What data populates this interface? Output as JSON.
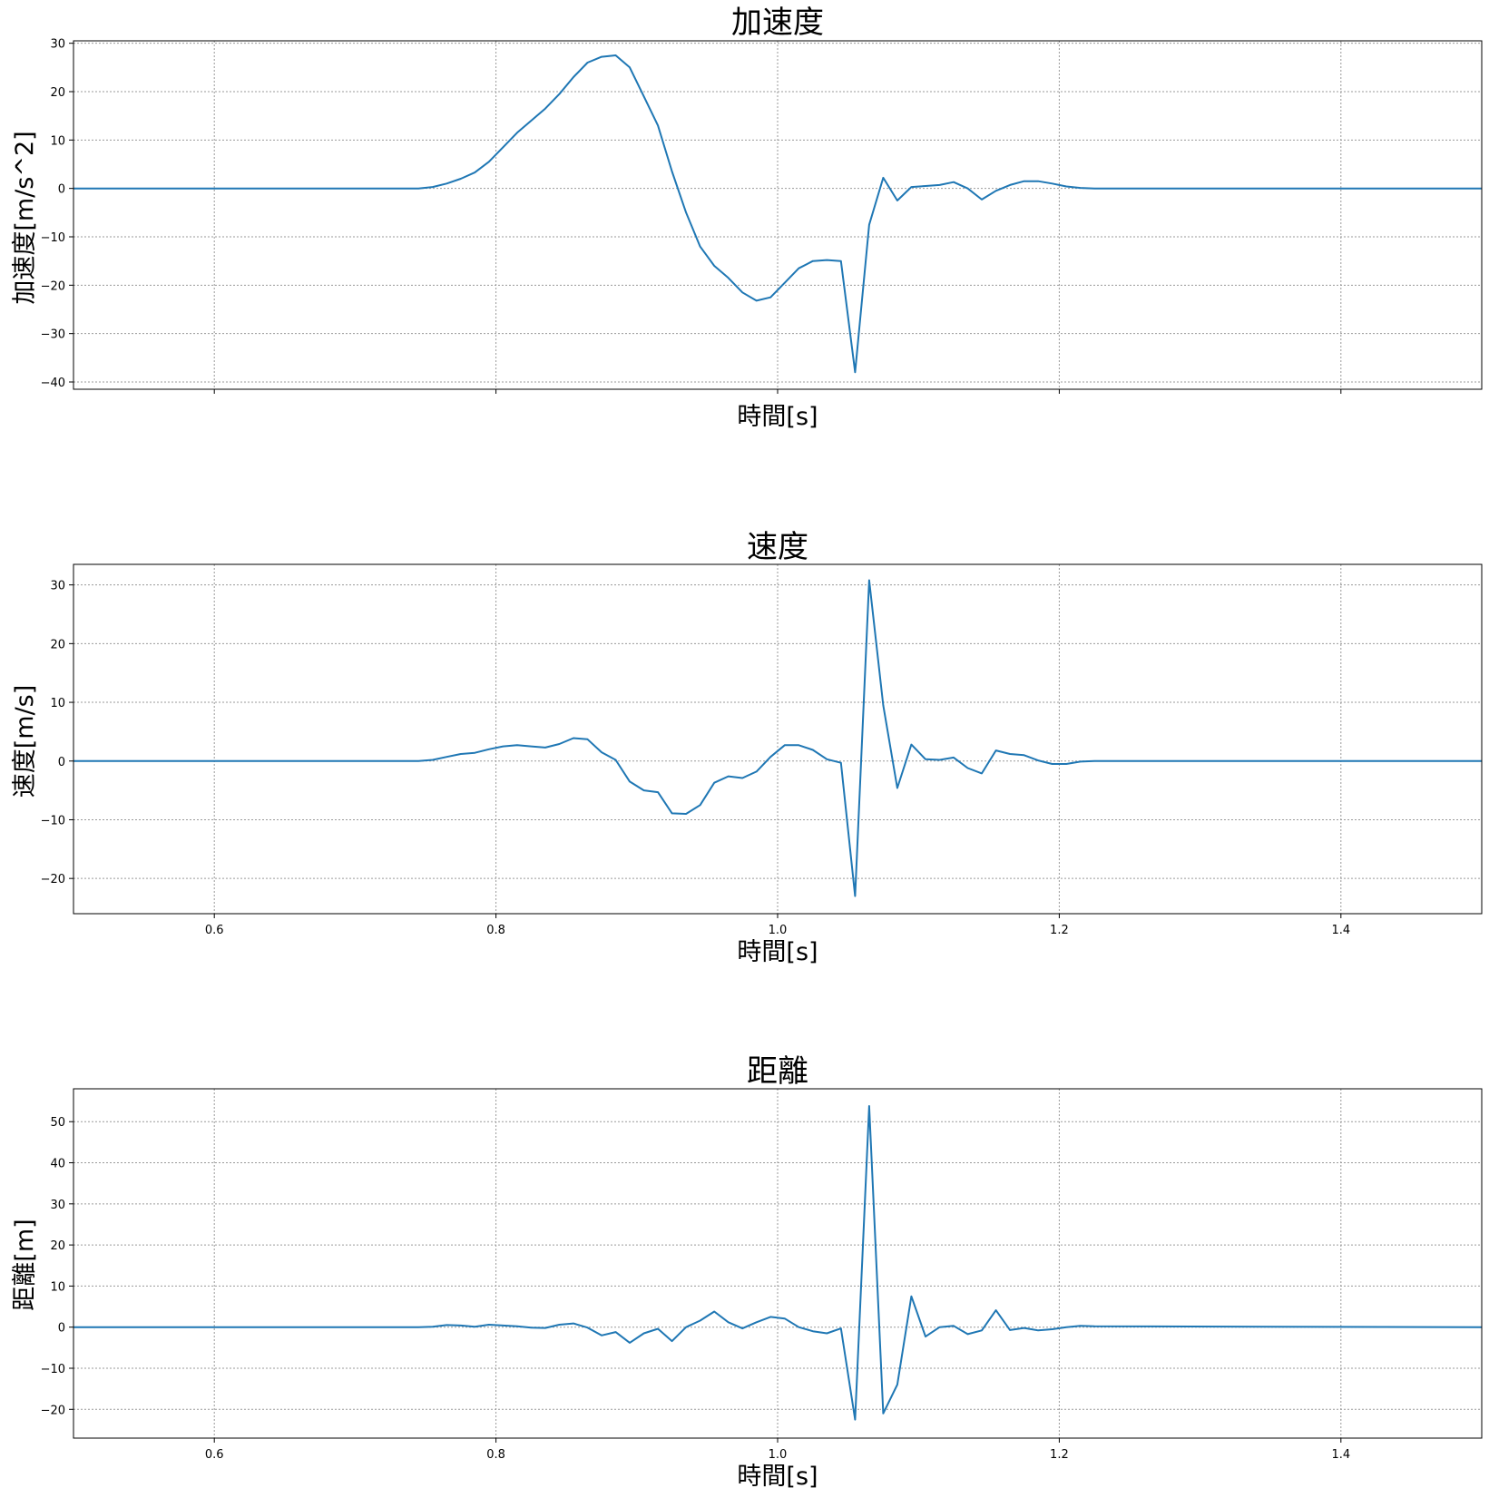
{
  "chart_data": [
    {
      "type": "line",
      "title": "加速度",
      "xlabel": "時間[s]",
      "ylabel": "加速度[m/s^2]",
      "xlim": [
        0.5,
        1.5
      ],
      "ylim": [
        -41.5,
        30.5
      ],
      "grid": true,
      "xticks": [
        0.6,
        0.8,
        1.0,
        1.2,
        1.4
      ],
      "xtick_labels": [],
      "yticks": [
        30,
        20,
        10,
        0,
        -10,
        -20,
        -30,
        -40
      ],
      "ytick_labels": [
        "30",
        "20",
        "10",
        "0",
        "−10",
        "−20",
        "−30",
        "−40"
      ],
      "x": [
        0.5,
        0.7,
        0.745,
        0.755,
        0.765,
        0.775,
        0.785,
        0.795,
        0.805,
        0.815,
        0.825,
        0.835,
        0.845,
        0.855,
        0.865,
        0.875,
        0.885,
        0.895,
        0.905,
        0.915,
        0.925,
        0.935,
        0.945,
        0.955,
        0.965,
        0.975,
        0.985,
        0.995,
        1.005,
        1.015,
        1.025,
        1.035,
        1.045,
        1.055,
        1.065,
        1.075,
        1.085,
        1.095,
        1.105,
        1.115,
        1.125,
        1.135,
        1.145,
        1.155,
        1.165,
        1.175,
        1.185,
        1.195,
        1.205,
        1.215,
        1.225,
        1.3,
        1.5
      ],
      "y": [
        0,
        0,
        0,
        0.3,
        1,
        2,
        3.3,
        5.5,
        8.5,
        11.5,
        14,
        16.5,
        19.5,
        23,
        26,
        27.2,
        27.5,
        25,
        19,
        13,
        3.5,
        -5,
        -12,
        -16,
        -18.5,
        -21.5,
        -23.2,
        -22.5,
        -19.5,
        -16.5,
        -15,
        -14.8,
        -15,
        -38,
        -7.5,
        2.2,
        -2.5,
        0.3,
        0.5,
        0.7,
        1.3,
        0,
        -2.3,
        -0.5,
        0.7,
        1.5,
        1.5,
        1,
        0.4,
        0.1,
        0,
        0,
        0
      ]
    },
    {
      "type": "line",
      "title": "速度",
      "xlabel": "時間[s]",
      "ylabel": "速度[m/s]",
      "xlim": [
        0.5,
        1.5
      ],
      "ylim": [
        -26,
        33.5
      ],
      "grid": true,
      "xticks": [
        0.6,
        0.8,
        1.0,
        1.2,
        1.4
      ],
      "xtick_labels": [
        "0.6",
        "0.8",
        "1.0",
        "1.2",
        "1.4"
      ],
      "yticks": [
        30,
        20,
        10,
        0,
        -10,
        -20
      ],
      "ytick_labels": [
        "30",
        "20",
        "10",
        "0",
        "−10",
        "−20"
      ],
      "x": [
        0.5,
        0.745,
        0.755,
        0.765,
        0.775,
        0.785,
        0.795,
        0.805,
        0.815,
        0.825,
        0.835,
        0.845,
        0.855,
        0.865,
        0.875,
        0.885,
        0.895,
        0.905,
        0.915,
        0.925,
        0.935,
        0.945,
        0.955,
        0.965,
        0.975,
        0.985,
        0.995,
        1.005,
        1.015,
        1.025,
        1.035,
        1.045,
        1.055,
        1.065,
        1.075,
        1.085,
        1.095,
        1.105,
        1.115,
        1.125,
        1.135,
        1.145,
        1.155,
        1.165,
        1.175,
        1.185,
        1.195,
        1.205,
        1.215,
        1.225,
        1.5
      ],
      "y": [
        0,
        0,
        0.2,
        0.7,
        1.2,
        1.4,
        2,
        2.5,
        2.7,
        2.5,
        2.3,
        2.9,
        3.9,
        3.7,
        1.5,
        0.2,
        -3.5,
        -5,
        -5.3,
        -8.9,
        -9,
        -7.5,
        -3.7,
        -2.6,
        -2.9,
        -1.8,
        0.7,
        2.7,
        2.7,
        1.9,
        0.3,
        -0.3,
        -23,
        30.8,
        9.5,
        -4.6,
        2.8,
        0.3,
        0.2,
        0.6,
        -1.2,
        -2.1,
        1.8,
        1.2,
        1,
        0.1,
        -0.5,
        -0.5,
        -0.1,
        0,
        0
      ]
    },
    {
      "type": "line",
      "title": "距離",
      "xlabel": "時間[s]",
      "ylabel": "距離[m]",
      "xlim": [
        0.5,
        1.5
      ],
      "ylim": [
        -27,
        58
      ],
      "grid": true,
      "xticks": [
        0.6,
        0.8,
        1.0,
        1.2,
        1.4
      ],
      "xtick_labels": [
        "0.6",
        "0.8",
        "1.0",
        "1.2",
        "1.4"
      ],
      "yticks": [
        50,
        40,
        30,
        20,
        10,
        0,
        -10,
        -20
      ],
      "ytick_labels": [
        "50",
        "40",
        "30",
        "20",
        "10",
        "0",
        "−10",
        "−20"
      ],
      "x": [
        0.5,
        0.745,
        0.755,
        0.765,
        0.775,
        0.785,
        0.795,
        0.805,
        0.815,
        0.825,
        0.835,
        0.845,
        0.855,
        0.865,
        0.875,
        0.885,
        0.895,
        0.905,
        0.915,
        0.925,
        0.935,
        0.945,
        0.955,
        0.965,
        0.975,
        0.985,
        0.995,
        1.005,
        1.015,
        1.025,
        1.035,
        1.045,
        1.055,
        1.065,
        1.075,
        1.085,
        1.095,
        1.105,
        1.115,
        1.125,
        1.135,
        1.145,
        1.155,
        1.165,
        1.175,
        1.185,
        1.195,
        1.205,
        1.215,
        1.225,
        1.5
      ],
      "y": [
        0,
        0,
        0.1,
        0.5,
        0.4,
        0.1,
        0.6,
        0.4,
        0.2,
        -0.1,
        -0.2,
        0.6,
        0.9,
        -0.1,
        -2,
        -1.2,
        -3.8,
        -1.5,
        -0.4,
        -3.4,
        0,
        1.6,
        3.8,
        1.2,
        -0.3,
        1.2,
        2.5,
        2.1,
        0,
        -1,
        -1.5,
        -0.3,
        -22.5,
        53.8,
        -21,
        -14,
        7.5,
        -2.3,
        0,
        0.3,
        -1.7,
        -0.8,
        4.1,
        -0.7,
        -0.2,
        -0.8,
        -0.5,
        0,
        0.3,
        0.2,
        0
      ]
    }
  ]
}
